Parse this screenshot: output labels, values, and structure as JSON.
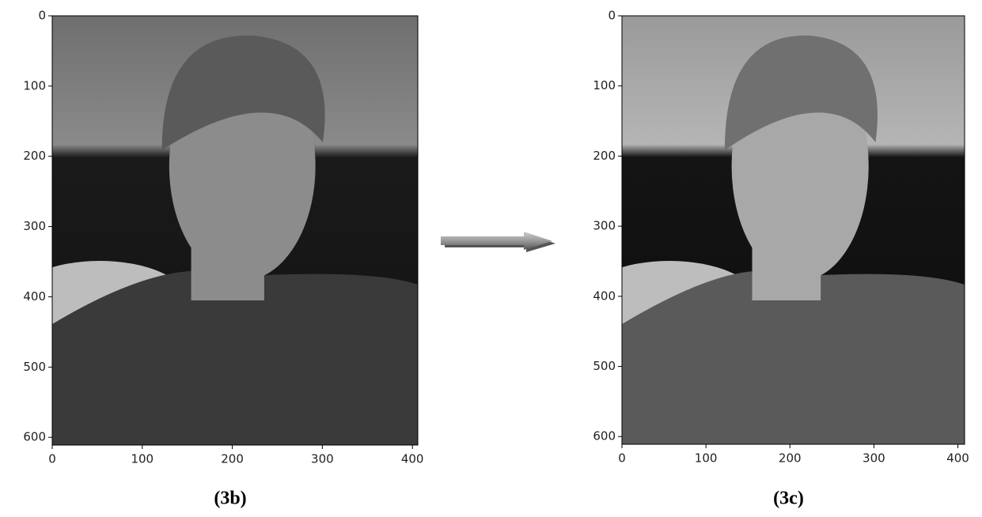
{
  "panels": [
    {
      "caption": "(3b)",
      "xlim": [
        0,
        406
      ],
      "ylim": [
        611,
        0
      ],
      "xticks": [
        0,
        100,
        200,
        300,
        400
      ],
      "yticks": [
        0,
        100,
        200,
        300,
        400,
        500,
        600
      ]
    },
    {
      "caption": "(3c)",
      "xlim": [
        0,
        408
      ],
      "ylim": [
        611,
        0
      ],
      "xticks": [
        0,
        100,
        200,
        300,
        400
      ],
      "yticks": [
        0,
        100,
        200,
        300,
        400,
        500,
        600
      ]
    }
  ]
}
